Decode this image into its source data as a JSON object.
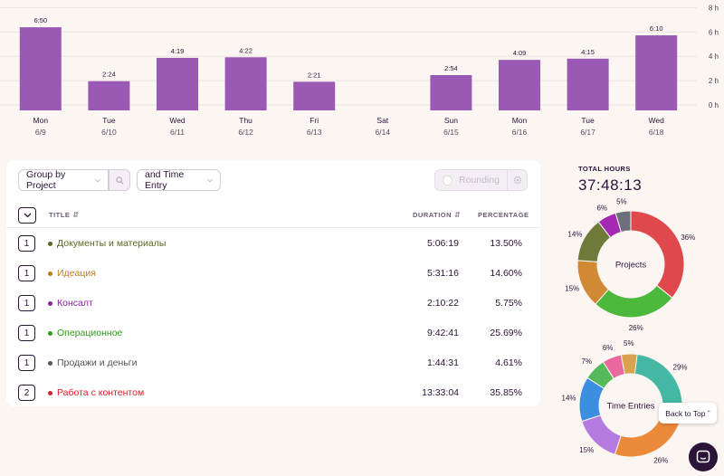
{
  "chart_data": {
    "type": "bar",
    "categories": [
      {
        "day": "Mon",
        "date": "6/9"
      },
      {
        "day": "Tue",
        "date": "6/10"
      },
      {
        "day": "Wed",
        "date": "6/11"
      },
      {
        "day": "Thu",
        "date": "6/12"
      },
      {
        "day": "Fri",
        "date": "6/13"
      },
      {
        "day": "Sat",
        "date": "6/14"
      },
      {
        "day": "Sun",
        "date": "6/15"
      },
      {
        "day": "Mon",
        "date": "6/16"
      },
      {
        "day": "Tue",
        "date": "6/17"
      },
      {
        "day": "Wed",
        "date": "6/18"
      }
    ],
    "values": [
      6.833,
      2.4,
      4.317,
      4.367,
      2.35,
      0,
      2.9,
      4.15,
      4.25,
      6.167
    ],
    "value_labels": [
      "6:50",
      "2:24",
      "4:19",
      "4:22",
      "2:21",
      "",
      "2:54",
      "4:09",
      "4:15",
      "6:10"
    ],
    "y_ticks": [
      "0 h",
      "2 h",
      "4 h",
      "6 h",
      "8 h"
    ],
    "ylim": [
      0,
      8
    ],
    "bar_color": "#9b59b6"
  },
  "toolbar": {
    "group_by_label": "Group by Project",
    "time_entry_label": "and Time Entry",
    "rounding_label": "Rounding"
  },
  "table": {
    "col_title": "TITLE",
    "col_duration": "DURATION",
    "col_percentage": "PERCENTAGE",
    "rows": [
      {
        "count": "1",
        "name": "Документы и материалы",
        "color": "#55691d",
        "duration": "5:06:19",
        "percentage": "13.50%"
      },
      {
        "count": "1",
        "name": "Идеация",
        "color": "#c27c1e",
        "duration": "5:31:16",
        "percentage": "14.60%"
      },
      {
        "count": "1",
        "name": "Консалт",
        "color": "#8e1ea3",
        "duration": "2:10:22",
        "percentage": "5.75%"
      },
      {
        "count": "1",
        "name": "Операционное",
        "color": "#2e9c16",
        "duration": "9:42:41",
        "percentage": "25.69%"
      },
      {
        "count": "1",
        "name": "Продажи и деньги",
        "color": "#555555",
        "duration": "1:44:31",
        "percentage": "4.61%"
      },
      {
        "count": "2",
        "name": "Работа с контентом",
        "color": "#d4232c",
        "duration": "13:33:04",
        "percentage": "35.85%"
      }
    ]
  },
  "summary": {
    "total_label": "TOTAL HOURS",
    "total_value": "37:48:13",
    "projects_label": "Projects",
    "entries_label": "Time Entries",
    "projects_donut": [
      {
        "pct": 35.85,
        "label": "36%",
        "color": "#e0494c"
      },
      {
        "pct": 25.69,
        "label": "26%",
        "color": "#4cb83c"
      },
      {
        "pct": 14.6,
        "label": "15%",
        "color": "#d08a35"
      },
      {
        "pct": 13.5,
        "label": "14%",
        "color": "#6f7a3a"
      },
      {
        "pct": 5.75,
        "label": "6%",
        "color": "#a52ab3"
      },
      {
        "pct": 4.61,
        "label": "5%",
        "color": "#6e6f7c"
      }
    ],
    "entries_donut": [
      {
        "pct": 29,
        "label": "29%",
        "color": "#45b8a3"
      },
      {
        "pct": 26,
        "label": "26%",
        "color": "#ec8a3c"
      },
      {
        "pct": 15,
        "label": "15%",
        "color": "#b57be0"
      },
      {
        "pct": 14,
        "label": "14%",
        "color": "#3b8ee0"
      },
      {
        "pct": 7,
        "label": "7%",
        "color": "#55b85a"
      },
      {
        "pct": 6,
        "label": "6%",
        "color": "#e9689f"
      },
      {
        "pct": 5,
        "label": "5%",
        "color": "#d9a24f"
      }
    ]
  },
  "back_to_top_label": "Back to Top"
}
